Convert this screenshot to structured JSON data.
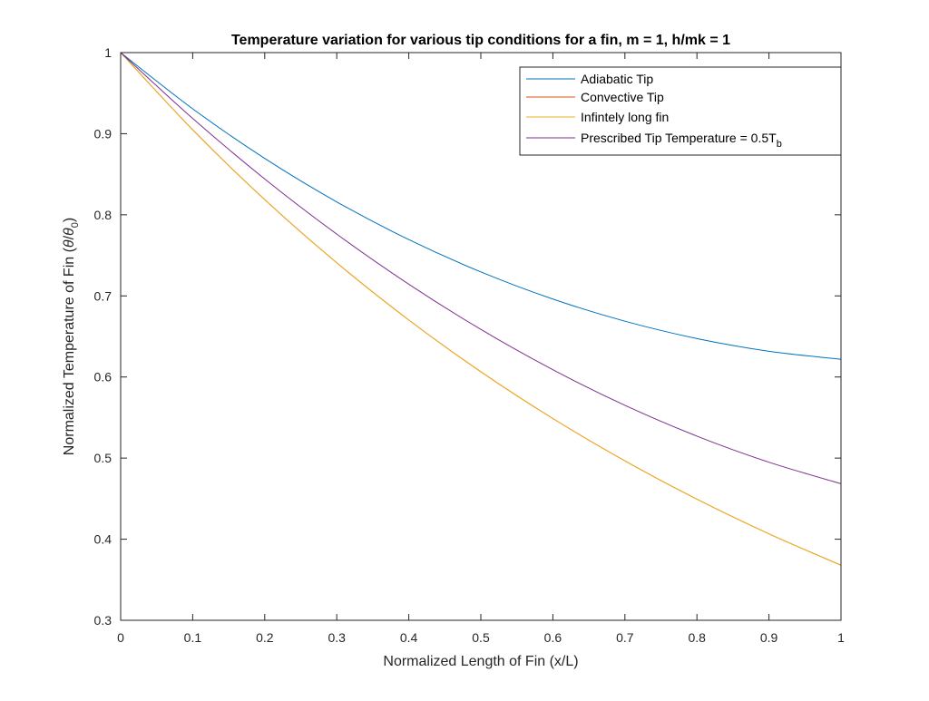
{
  "chart_data": {
    "type": "line",
    "title": "Temperature variation for various tip conditions for a fin, m = 1, h/mk = 1",
    "xlabel": "Normalized Length of Fin (x/L)",
    "ylabel": "Normalized Temperature of Fin (θ/θ0)",
    "ylabel_parts": {
      "pre": "Normalized Temperature of Fin (",
      "theta1": "θ",
      "slash": "/",
      "theta2": "θ",
      "sub": "0",
      "post": ")"
    },
    "xlim": [
      0,
      1
    ],
    "ylim": [
      0.3,
      1
    ],
    "xticks": [
      "0",
      "0.1",
      "0.2",
      "0.3",
      "0.4",
      "0.5",
      "0.6",
      "0.7",
      "0.8",
      "0.9",
      "1"
    ],
    "yticks": [
      "0.3",
      "0.4",
      "0.5",
      "0.6",
      "0.7",
      "0.8",
      "0.9",
      "1"
    ],
    "grid": false,
    "legend_position": "top-right",
    "x": [
      0,
      0.1,
      0.2,
      0.3,
      0.4,
      0.5,
      0.6,
      0.7,
      0.8,
      0.9,
      1.0
    ],
    "series": [
      {
        "name": "Adiabatic Tip",
        "color": "#0072BD",
        "values": [
          1.0,
          0.9307,
          0.8695,
          0.8159,
          0.7694,
          0.7296,
          0.6961,
          0.6688,
          0.6474,
          0.6317,
          0.6218
        ]
      },
      {
        "name": "Convective Tip",
        "color": "#D95319",
        "values": [
          1.0,
          0.9048,
          0.8187,
          0.7408,
          0.6703,
          0.6065,
          0.5488,
          0.4966,
          0.4493,
          0.4066,
          0.3679
        ]
      },
      {
        "name": "Infintely long fin",
        "color": "#EDB120",
        "values": [
          1.0,
          0.9048,
          0.8187,
          0.7408,
          0.6703,
          0.6065,
          0.5488,
          0.4966,
          0.4493,
          0.4066,
          0.3679
        ]
      },
      {
        "name": "Prescribed Tip Temperature = 0.5T",
        "name_sub": "b",
        "color": "#7E2F8E",
        "values": [
          1.0,
          0.9188,
          0.8442,
          0.7762,
          0.7144,
          0.6587,
          0.609,
          0.5651,
          0.5271,
          0.4949,
          0.4684
        ]
      }
    ]
  }
}
